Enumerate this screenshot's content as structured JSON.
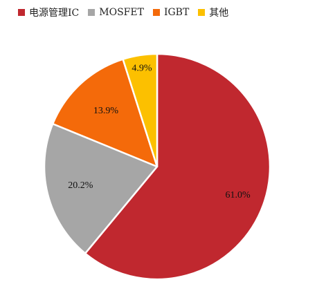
{
  "chart_data": {
    "type": "pie",
    "title": "",
    "categories": [
      "电源管理IC",
      "MOSFET",
      "IGBT",
      "其他"
    ],
    "values": [
      61.0,
      20.2,
      13.9,
      4.9
    ],
    "labels": [
      "61.0%",
      "20.2%",
      "13.9%",
      "4.9%"
    ],
    "colors": [
      "#c0282f",
      "#a6a6a6",
      "#f46a0a",
      "#fcc000"
    ],
    "start_angle_deg": 0,
    "direction": "clockwise",
    "legend_placement": "top"
  },
  "legend": {
    "items": [
      {
        "label": "电源管理IC",
        "color": "#c0282f"
      },
      {
        "label": "MOSFET",
        "color": "#a6a6a6"
      },
      {
        "label": "IGBT",
        "color": "#f46a0a"
      },
      {
        "label": "其他",
        "color": "#fcc000"
      }
    ]
  }
}
